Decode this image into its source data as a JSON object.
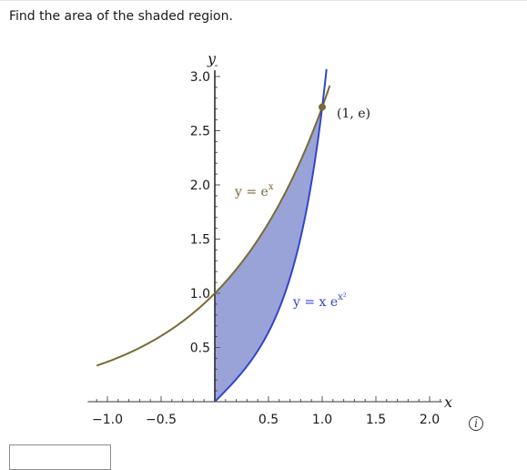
{
  "question": {
    "text": "Find the area of the shaded region."
  },
  "chart_data": {
    "type": "area",
    "xlim": [
      -1.2,
      2.2
    ],
    "ylim": [
      0,
      3.1
    ],
    "x_ticks": [
      -1.0,
      -0.5,
      0.5,
      1.0,
      1.5,
      2.0
    ],
    "x_tick_labels": [
      "−1.0",
      "−0.5",
      "0.5",
      "1.0",
      "1.5",
      "2.0"
    ],
    "y_ticks": [
      0.5,
      1.0,
      1.5,
      2.0,
      2.5,
      3.0
    ],
    "y_tick_labels": [
      "0.5",
      "1.0",
      "1.5",
      "2.0",
      "2.5",
      "3.0"
    ],
    "xlabel": "x",
    "ylabel": "y",
    "curves": [
      {
        "name": "y = e^x",
        "color": "#7a6a35",
        "domain": [
          -1.1,
          1.07
        ]
      },
      {
        "name": "y = x e^(x^2)",
        "color": "#3344cc",
        "domain": [
          0,
          1.04
        ]
      }
    ],
    "shaded_region": {
      "x_from": 0,
      "x_to": 1,
      "fill": "#9aa3d8"
    },
    "intersection_point": {
      "label": "(1, e)",
      "x": 1,
      "y": 2.718,
      "color": "#7a6a35"
    },
    "annotations": {
      "curve1_prefix": "y = e",
      "curve1_exp": "x",
      "curve2_prefix": "y = x e",
      "curve2_exp": "x²"
    }
  },
  "answer": {
    "value": "",
    "placeholder": ""
  },
  "info_icon": {
    "glyph": "i",
    "icon": "info-icon"
  },
  "colors": {
    "curve_exp": "#7a6a35",
    "curve_xexp": "#3344cc",
    "shade": "#9aa3d8"
  }
}
